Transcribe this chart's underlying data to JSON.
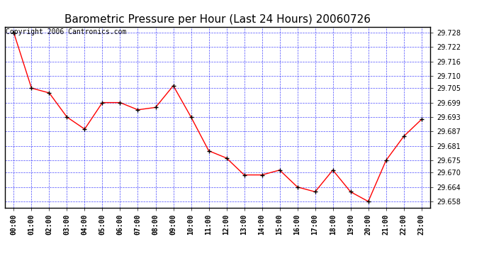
{
  "title": "Barometric Pressure per Hour (Last 24 Hours) 20060726",
  "copyright": "Copyright 2006 Cantronics.com",
  "hours": [
    "00:00",
    "01:00",
    "02:00",
    "03:00",
    "04:00",
    "05:00",
    "06:00",
    "07:00",
    "08:00",
    "09:00",
    "10:00",
    "11:00",
    "12:00",
    "13:00",
    "14:00",
    "15:00",
    "16:00",
    "17:00",
    "18:00",
    "19:00",
    "20:00",
    "21:00",
    "22:00",
    "23:00"
  ],
  "values": [
    29.728,
    29.705,
    29.703,
    29.693,
    29.688,
    29.699,
    29.699,
    29.696,
    29.697,
    29.706,
    29.693,
    29.679,
    29.676,
    29.669,
    29.669,
    29.671,
    29.664,
    29.662,
    29.671,
    29.662,
    29.658,
    29.675,
    29.685,
    29.692
  ],
  "ylim_min": 29.6555,
  "ylim_max": 29.7305,
  "yticks": [
    29.658,
    29.664,
    29.67,
    29.675,
    29.681,
    29.687,
    29.693,
    29.699,
    29.705,
    29.71,
    29.716,
    29.722,
    29.728
  ],
  "line_color": "red",
  "marker": "+",
  "marker_color": "black",
  "bg_color": "#ffffff",
  "plot_bg_color": "#ffffff",
  "grid_color": "blue",
  "title_color": "black",
  "title_fontsize": 11,
  "copyright_fontsize": 7,
  "tick_fontsize": 7,
  "axis_label_color": "black"
}
